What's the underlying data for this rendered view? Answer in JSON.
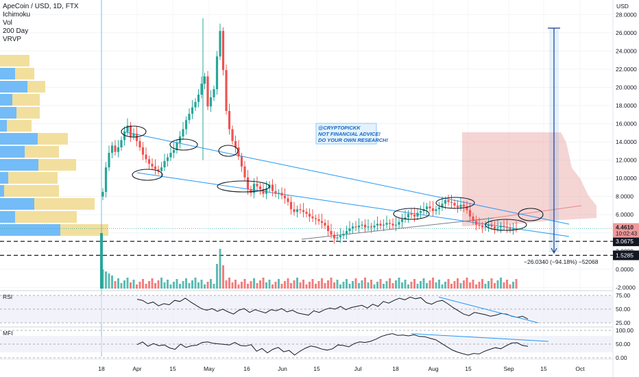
{
  "header": {
    "symbol": "ApeCoin / USD, 1D, FTX",
    "indicators": [
      "Ichimoku",
      "Vol",
      "200 Day",
      "VRVP"
    ]
  },
  "annotation": {
    "lines": [
      "@CRYPTOPICKK",
      "NOT FINANCIAL ADVICE!",
      "DO YOUR OWN RESEARCH!"
    ],
    "measure_label": "−26.0340 (−94.18%) −52068"
  },
  "colors": {
    "up": "#26a69a",
    "down": "#ef5350",
    "trendline": "#2196f3",
    "vrvp_up": "#64b5f6",
    "vrvp_down": "#f0d98c",
    "cloud": "#e8a0a0"
  },
  "chart_data": [
    {
      "type": "line",
      "panel": "price",
      "ylabel": "USD",
      "y_ticks": [
        "28.0000",
        "26.0000",
        "24.0000",
        "22.0000",
        "20.0000",
        "18.0000",
        "16.0000",
        "14.0000",
        "12.0000",
        "10.0000",
        "8.0000",
        "6.0000",
        "4.0000",
        "2.0000",
        "0.0000",
        "-2.0000"
      ],
      "ylim": [
        -2.2,
        29
      ],
      "current_price": "4.4610",
      "countdown": "10:02:43",
      "support_labels": [
        "3.0675",
        "1.5285"
      ],
      "support_values": [
        3.0675,
        1.5285
      ],
      "x_labels": [
        "18",
        "Apr",
        "15",
        "May",
        "16",
        "Jun",
        "15",
        "Jul",
        "18",
        "Aug",
        "15",
        "Sep",
        "15",
        "Oct"
      ],
      "series": [
        {
          "values": [
            8.5,
            11.2,
            12.8,
            13.6,
            12.9,
            13.4,
            14.2,
            15.1,
            15.8,
            14.6,
            14.9,
            14.1,
            13.4,
            12.6,
            12.1,
            11.6,
            11.3,
            11.0,
            10.8,
            11.2,
            11.9,
            12.3,
            12.8,
            13.1,
            13.9,
            14.6,
            15.4,
            16.4,
            17.1,
            17.8,
            18.4,
            19.2,
            20.4,
            21.2,
            17.9,
            18.9,
            19.8,
            23.4,
            26.2,
            21.9,
            17.4,
            15.4,
            14.1,
            13.4,
            12.4,
            11.3,
            10.1,
            8.8,
            8.4,
            9.4,
            9.1,
            8.8,
            8.3,
            8.9,
            9.3,
            8.6,
            8.3,
            8.4,
            8.1,
            7.8,
            7.4,
            6.6,
            6.3,
            6.6,
            6.5,
            6.3,
            6.1,
            5.8,
            5.6,
            5.5,
            5.3,
            5.1,
            4.8,
            4.2,
            3.8,
            3.4,
            3.5,
            3.7,
            3.9,
            4.2,
            4.5,
            4.7,
            4.6,
            4.8,
            4.9,
            4.6,
            4.7,
            4.6,
            4.8,
            5.0,
            4.8,
            4.9,
            5.1,
            5.0,
            4.8,
            4.9,
            5.2,
            5.5,
            5.7,
            6.1,
            6.0,
            5.8,
            6.2,
            6.4,
            6.6,
            6.9,
            6.7,
            6.4,
            6.6,
            6.8,
            7.2,
            7.6,
            7.4,
            7.3,
            7.0,
            6.8,
            7.1,
            6.9,
            6.5,
            5.8,
            5.3,
            4.9,
            4.8,
            4.6,
            4.7,
            4.9,
            4.7,
            4.5,
            4.6,
            4.8,
            4.7,
            4.6,
            4.4,
            4.5,
            4.46
          ]
        }
      ]
    },
    {
      "type": "line",
      "panel": "RSI",
      "y_ticks": [
        "75.00",
        "50.00",
        "25.00"
      ],
      "ylim": [
        20,
        80
      ],
      "series": [
        {
          "name": "RSI",
          "values": [
            68,
            66,
            60,
            63,
            56,
            60,
            58,
            66,
            64,
            70,
            63,
            57,
            51,
            48,
            51,
            46,
            50,
            45,
            41,
            48,
            51,
            44,
            49,
            46,
            43,
            49,
            47,
            51,
            45,
            48,
            43,
            41,
            39,
            47,
            44,
            49,
            52,
            50,
            55,
            49,
            53,
            55,
            57,
            52,
            59,
            55,
            64,
            61,
            66,
            70,
            67,
            72,
            69,
            71,
            62,
            59,
            64,
            66,
            60,
            53,
            47,
            41,
            38,
            44,
            42,
            40,
            37,
            39,
            42,
            41,
            37,
            35,
            37,
            32
          ]
        }
      ]
    },
    {
      "type": "line",
      "panel": "MFI",
      "y_ticks": [
        "100.00",
        "50.00",
        "0.00"
      ],
      "ylim": [
        -5,
        105
      ],
      "series": [
        {
          "name": "MFI",
          "values": [
            48,
            58,
            42,
            52,
            44,
            47,
            36,
            31,
            50,
            38,
            44,
            46,
            56,
            58,
            53,
            51,
            49,
            47,
            56,
            45,
            43,
            48,
            24,
            34,
            18,
            31,
            38,
            22,
            27,
            10,
            24,
            35,
            43,
            39,
            32,
            28,
            33,
            47,
            45,
            40,
            52,
            58,
            56,
            60,
            68,
            78,
            84,
            88,
            82,
            83,
            80,
            84,
            78,
            77,
            71,
            66,
            54,
            41,
            29,
            21,
            15,
            10,
            16,
            14,
            24,
            31,
            37,
            33,
            44,
            54,
            55,
            45,
            42
          ]
        }
      ]
    }
  ]
}
